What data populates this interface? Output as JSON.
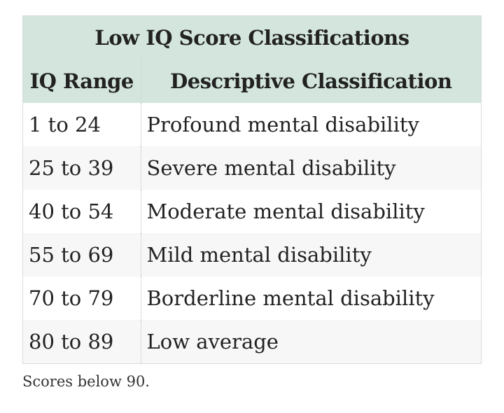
{
  "table": {
    "title": "Low IQ Score Classifications",
    "headers": {
      "range": "IQ Range",
      "classification": "Descriptive Classification"
    },
    "rows": [
      {
        "range": "1 to 24",
        "classification": "Profound mental disability"
      },
      {
        "range": "25 to 39",
        "classification": "Severe mental disability"
      },
      {
        "range": "40 to 54",
        "classification": "Moderate mental disability"
      },
      {
        "range": "55 to 69",
        "classification": "Mild mental disability"
      },
      {
        "range": "70 to 79",
        "classification": "Borderline mental disability"
      },
      {
        "range": "80 to 89",
        "classification": "Low average"
      }
    ]
  },
  "note": "Scores below 90.",
  "colors": {
    "header_background": "#d3e5dc",
    "stripe_background": "#f7f7f7",
    "text": "#222222"
  }
}
